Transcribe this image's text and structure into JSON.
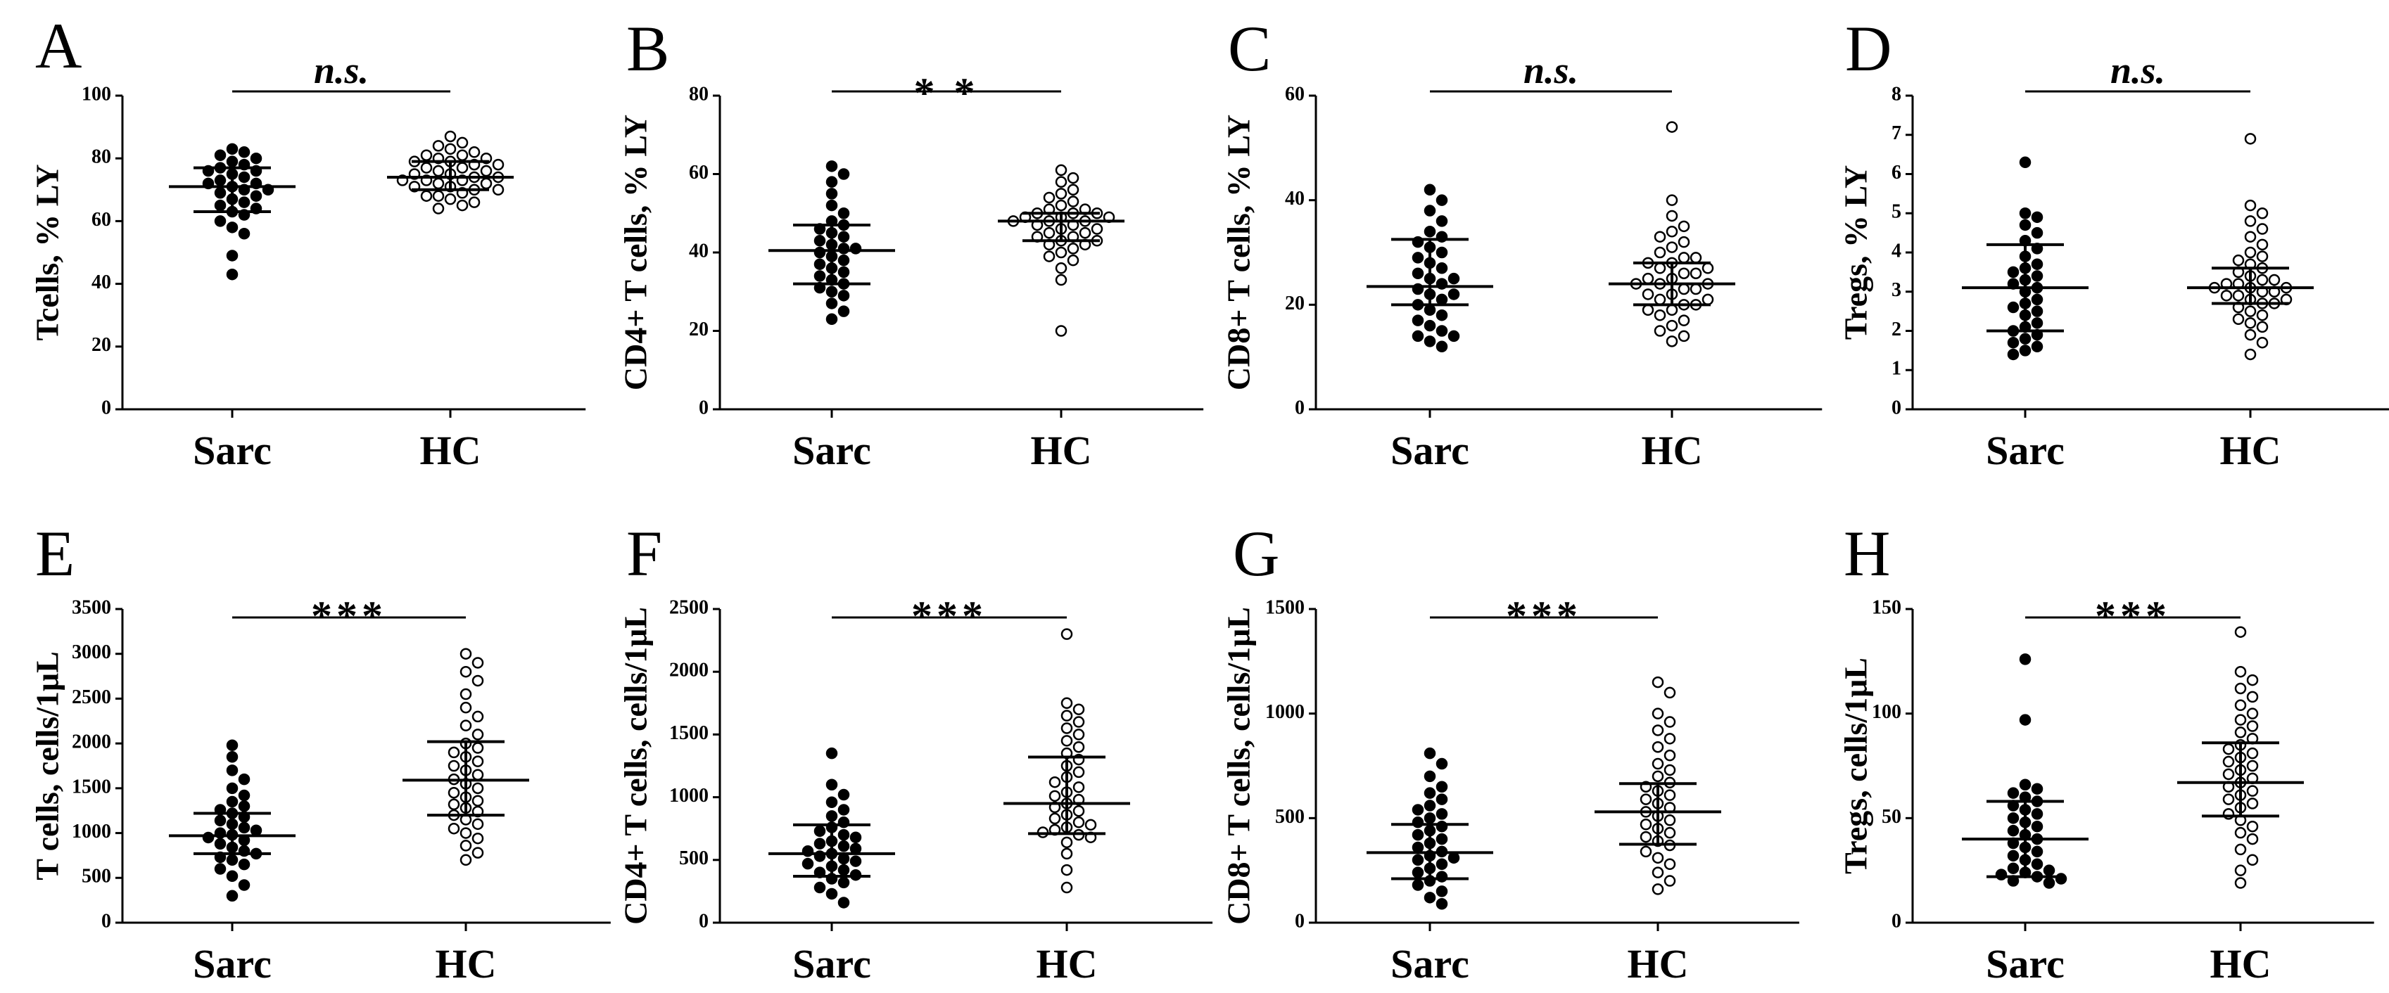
{
  "chart_data": [
    {
      "type": "scatter",
      "panel": "A",
      "ylabel": "Tcells, % LY",
      "ylim": [
        0,
        100
      ],
      "yticks": [
        "0",
        "20",
        "40",
        "60",
        "80",
        "100"
      ],
      "categories": [
        "Sarc",
        "HC"
      ],
      "significance": "n.s.",
      "series": [
        {
          "name": "Sarc",
          "marker": "filled",
          "mean": 71,
          "error_low": 63,
          "error_high": 77,
          "values": [
            43,
            49,
            56,
            58,
            60,
            62,
            63,
            64,
            65,
            66,
            67,
            68,
            69,
            70,
            70,
            71,
            72,
            72,
            73,
            74,
            75,
            76,
            76,
            77,
            78,
            79,
            80,
            81,
            82,
            83
          ]
        },
        {
          "name": "HC",
          "marker": "open",
          "mean": 74,
          "error_low": 70,
          "error_high": 79,
          "values": [
            64,
            65,
            66,
            67,
            68,
            68,
            69,
            70,
            70,
            71,
            71,
            72,
            72,
            73,
            73,
            73,
            74,
            74,
            75,
            75,
            76,
            76,
            77,
            77,
            78,
            78,
            79,
            79,
            80,
            80,
            81,
            81,
            82,
            83,
            84,
            85,
            87
          ]
        }
      ]
    },
    {
      "type": "scatter",
      "panel": "B",
      "ylabel": "CD4+ T cells, % LY",
      "ylim": [
        0,
        80
      ],
      "yticks": [
        "0",
        "20",
        "40",
        "60",
        "80"
      ],
      "categories": [
        "Sarc",
        "HC"
      ],
      "significance": "* *",
      "series": [
        {
          "name": "Sarc",
          "marker": "filled",
          "mean": 40.5,
          "error_low": 32,
          "error_high": 47,
          "values": [
            23,
            25,
            27,
            29,
            30,
            31,
            32,
            33,
            34,
            35,
            36,
            37,
            38,
            39,
            40,
            41,
            41,
            42,
            43,
            44,
            45,
            46,
            47,
            48,
            50,
            52,
            55,
            58,
            60,
            62
          ]
        },
        {
          "name": "HC",
          "marker": "open",
          "mean": 48,
          "error_low": 43,
          "error_high": 50,
          "values": [
            20,
            33,
            36,
            38,
            39,
            40,
            41,
            42,
            42,
            43,
            43,
            44,
            44,
            45,
            45,
            46,
            46,
            47,
            47,
            48,
            48,
            48,
            49,
            49,
            49,
            50,
            50,
            50,
            51,
            51,
            52,
            53,
            54,
            55,
            56,
            58,
            59,
            61
          ]
        }
      ]
    },
    {
      "type": "scatter",
      "panel": "C",
      "ylabel": "CD8+ T cells, % LY",
      "ylim": [
        0,
        60
      ],
      "yticks": [
        "0",
        "20",
        "40",
        "60"
      ],
      "categories": [
        "Sarc",
        "HC"
      ],
      "significance": "n.s.",
      "series": [
        {
          "name": "Sarc",
          "marker": "filled",
          "mean": 23.5,
          "error_low": 20,
          "error_high": 32.5,
          "values": [
            12,
            13,
            14,
            14,
            15,
            16,
            17,
            18,
            19,
            20,
            21,
            22,
            22,
            23,
            24,
            25,
            25,
            26,
            27,
            28,
            29,
            30,
            31,
            32,
            33,
            34,
            36,
            38,
            40,
            42
          ]
        },
        {
          "name": "HC",
          "marker": "open",
          "mean": 24,
          "error_low": 20,
          "error_high": 28,
          "values": [
            13,
            14,
            15,
            16,
            17,
            18,
            19,
            19,
            20,
            20,
            21,
            21,
            22,
            22,
            23,
            23,
            24,
            24,
            24,
            25,
            25,
            26,
            26,
            27,
            27,
            28,
            28,
            29,
            29,
            30,
            31,
            32,
            33,
            34,
            35,
            37,
            40,
            54
          ]
        }
      ]
    },
    {
      "type": "scatter",
      "panel": "D",
      "ylabel": "Tregs, % LY",
      "ylim": [
        0,
        8
      ],
      "yticks": [
        "0",
        "1",
        "2",
        "3",
        "4",
        "5",
        "6",
        "7",
        "8"
      ],
      "categories": [
        "Sarc",
        "HC"
      ],
      "significance": "n.s.",
      "series": [
        {
          "name": "Sarc",
          "marker": "filled",
          "mean": 3.1,
          "error_low": 2.0,
          "error_high": 4.2,
          "values": [
            1.4,
            1.5,
            1.6,
            1.7,
            1.8,
            1.9,
            2.0,
            2.1,
            2.2,
            2.4,
            2.5,
            2.6,
            2.7,
            2.8,
            3.0,
            3.1,
            3.2,
            3.3,
            3.4,
            3.5,
            3.6,
            3.7,
            3.9,
            4.1,
            4.3,
            4.5,
            4.7,
            4.9,
            5.0,
            6.3
          ]
        },
        {
          "name": "HC",
          "marker": "open",
          "mean": 3.1,
          "error_low": 2.7,
          "error_high": 3.6,
          "values": [
            1.4,
            1.7,
            1.9,
            2.1,
            2.2,
            2.3,
            2.4,
            2.5,
            2.6,
            2.7,
            2.7,
            2.8,
            2.8,
            2.9,
            2.9,
            3.0,
            3.0,
            3.1,
            3.1,
            3.1,
            3.2,
            3.2,
            3.3,
            3.3,
            3.4,
            3.5,
            3.6,
            3.7,
            3.8,
            3.9,
            4.0,
            4.2,
            4.4,
            4.6,
            4.8,
            5.0,
            5.2,
            6.9
          ]
        }
      ]
    },
    {
      "type": "scatter",
      "panel": "E",
      "ylabel": "T cells, cells/1μL",
      "ylim": [
        0,
        3500
      ],
      "yticks": [
        "0",
        "500",
        "1000",
        "1500",
        "2000",
        "2500",
        "3000",
        "3500"
      ],
      "categories": [
        "Sarc",
        "HC"
      ],
      "significance": "***",
      "series": [
        {
          "name": "Sarc",
          "marker": "filled",
          "mean": 970,
          "error_low": 770,
          "error_high": 1220,
          "values": [
            300,
            420,
            520,
            600,
            650,
            700,
            730,
            770,
            800,
            840,
            880,
            920,
            950,
            980,
            1000,
            1030,
            1060,
            1100,
            1140,
            1180,
            1220,
            1260,
            1300,
            1350,
            1420,
            1500,
            1600,
            1700,
            1850,
            1980
          ]
        },
        {
          "name": "HC",
          "marker": "open",
          "mean": 1590,
          "error_low": 1200,
          "error_high": 2020,
          "values": [
            700,
            780,
            860,
            940,
            1000,
            1050,
            1100,
            1150,
            1200,
            1240,
            1280,
            1320,
            1360,
            1400,
            1450,
            1500,
            1550,
            1600,
            1650,
            1700,
            1750,
            1800,
            1850,
            1900,
            1950,
            2000,
            2100,
            2200,
            2300,
            2400,
            2550,
            2700,
            2800,
            2900,
            3000
          ]
        }
      ]
    },
    {
      "type": "scatter",
      "panel": "F",
      "ylabel": "CD4+ T cells, cells/1μL",
      "ylim": [
        0,
        2500
      ],
      "yticks": [
        "0",
        "500",
        "1000",
        "1500",
        "2000",
        "2500"
      ],
      "categories": [
        "Sarc",
        "HC"
      ],
      "significance": "***",
      "series": [
        {
          "name": "Sarc",
          "marker": "filled",
          "mean": 550,
          "error_low": 370,
          "error_high": 780,
          "values": [
            160,
            230,
            280,
            320,
            350,
            380,
            400,
            420,
            450,
            470,
            490,
            510,
            530,
            550,
            570,
            590,
            610,
            630,
            650,
            680,
            700,
            730,
            760,
            800,
            850,
            900,
            960,
            1020,
            1100,
            1350
          ]
        },
        {
          "name": "HC",
          "marker": "open",
          "mean": 950,
          "error_low": 710,
          "error_high": 1320,
          "values": [
            280,
            420,
            550,
            640,
            680,
            700,
            720,
            740,
            760,
            780,
            800,
            830,
            860,
            890,
            920,
            950,
            980,
            1010,
            1040,
            1080,
            1120,
            1160,
            1200,
            1250,
            1300,
            1350,
            1400,
            1450,
            1500,
            1550,
            1600,
            1650,
            1700,
            1750,
            2300
          ]
        }
      ]
    },
    {
      "type": "scatter",
      "panel": "G",
      "ylabel": "CD8+ T cells, cells/1μL",
      "ylim": [
        0,
        1500
      ],
      "yticks": [
        "0",
        "500",
        "1000",
        "1500"
      ],
      "categories": [
        "Sarc",
        "HC"
      ],
      "significance": "***",
      "series": [
        {
          "name": "Sarc",
          "marker": "filled",
          "mean": 335,
          "error_low": 210,
          "error_high": 470,
          "values": [
            90,
            120,
            150,
            180,
            200,
            220,
            240,
            260,
            280,
            300,
            310,
            320,
            340,
            360,
            380,
            400,
            420,
            440,
            460,
            480,
            500,
            520,
            540,
            560,
            590,
            620,
            650,
            700,
            760,
            810
          ]
        },
        {
          "name": "HC",
          "marker": "open",
          "mean": 530,
          "error_low": 375,
          "error_high": 665,
          "values": [
            160,
            200,
            240,
            280,
            310,
            340,
            370,
            390,
            410,
            430,
            450,
            470,
            490,
            510,
            530,
            550,
            570,
            590,
            610,
            630,
            650,
            670,
            700,
            730,
            760,
            800,
            840,
            880,
            920,
            960,
            1000,
            1100,
            1150
          ]
        }
      ]
    },
    {
      "type": "scatter",
      "panel": "H",
      "ylabel": "Tregs, cells/1μL",
      "ylim": [
        0,
        150
      ],
      "yticks": [
        "0",
        "50",
        "100",
        "150"
      ],
      "categories": [
        "Sarc",
        "HC"
      ],
      "significance": "***",
      "series": [
        {
          "name": "Sarc",
          "marker": "filled",
          "mean": 40,
          "error_low": 22,
          "error_high": 58,
          "values": [
            19,
            20,
            21,
            22,
            23,
            24,
            25,
            26,
            28,
            30,
            32,
            34,
            36,
            38,
            40,
            42,
            44,
            46,
            48,
            50,
            52,
            54,
            56,
            58,
            60,
            62,
            64,
            66,
            97,
            126
          ]
        },
        {
          "name": "HC",
          "marker": "open",
          "mean": 67,
          "error_low": 51,
          "error_high": 86,
          "values": [
            19,
            25,
            30,
            35,
            40,
            43,
            46,
            49,
            52,
            55,
            57,
            59,
            61,
            63,
            65,
            67,
            69,
            71,
            73,
            75,
            77,
            79,
            81,
            83,
            85,
            88,
            91,
            94,
            97,
            100,
            104,
            108,
            112,
            116,
            120,
            139
          ]
        }
      ]
    }
  ]
}
